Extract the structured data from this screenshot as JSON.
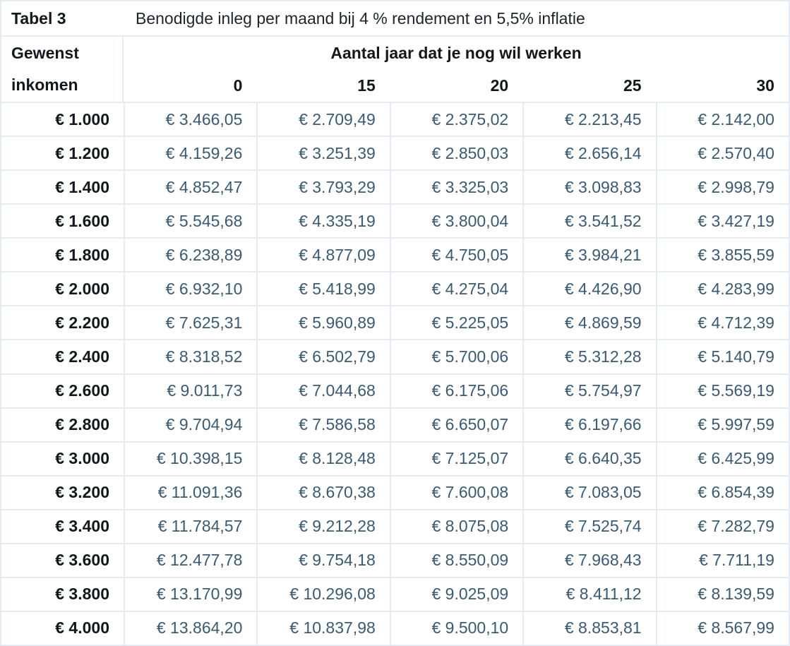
{
  "table": {
    "title_label": "Tabel 3",
    "title_text": "Benodigde inleg per maand bij 4 % rendement en 5,5% inflatie",
    "row_header_line1": "Gewenst",
    "row_header_line2": "inkomen",
    "col_group_header": "Aantal jaar dat je nog wil werken",
    "col_headers": [
      "0",
      "15",
      "20",
      "25",
      "30"
    ],
    "rows": [
      {
        "income": "€ 1.000",
        "values": [
          "€ 3.466,05",
          "€ 2.709,49",
          "€ 2.375,02",
          "€ 2.213,45",
          "€ 2.142,00"
        ]
      },
      {
        "income": "€ 1.200",
        "values": [
          "€ 4.159,26",
          "€ 3.251,39",
          "€ 2.850,03",
          "€ 2.656,14",
          "€ 2.570,40"
        ]
      },
      {
        "income": "€ 1.400",
        "values": [
          "€ 4.852,47",
          "€ 3.793,29",
          "€ 3.325,03",
          "€ 3.098,83",
          "€ 2.998,79"
        ]
      },
      {
        "income": "€ 1.600",
        "values": [
          "€ 5.545,68",
          "€ 4.335,19",
          "€ 3.800,04",
          "€ 3.541,52",
          "€ 3.427,19"
        ]
      },
      {
        "income": "€ 1.800",
        "values": [
          "€ 6.238,89",
          "€ 4.877,09",
          "€ 4.750,05",
          "€ 3.984,21",
          "€ 3.855,59"
        ]
      },
      {
        "income": "€ 2.000",
        "values": [
          "€ 6.932,10",
          "€ 5.418,99",
          "€ 4.275,04",
          "€ 4.426,90",
          "€ 4.283,99"
        ]
      },
      {
        "income": "€ 2.200",
        "values": [
          "€ 7.625,31",
          "€ 5.960,89",
          "€ 5.225,05",
          "€ 4.869,59",
          "€ 4.712,39"
        ]
      },
      {
        "income": "€ 2.400",
        "values": [
          "€ 8.318,52",
          "€ 6.502,79",
          "€ 5.700,06",
          "€ 5.312,28",
          "€ 5.140,79"
        ]
      },
      {
        "income": "€ 2.600",
        "values": [
          "€ 9.011,73",
          "€ 7.044,68",
          "€ 6.175,06",
          "€ 5.754,97",
          "€ 5.569,19"
        ]
      },
      {
        "income": "€ 2.800",
        "values": [
          "€ 9.704,94",
          "€ 7.586,58",
          "€ 6.650,07",
          "€ 6.197,66",
          "€ 5.997,59"
        ]
      },
      {
        "income": "€ 3.000",
        "values": [
          "€ 10.398,15",
          "€ 8.128,48",
          "€ 7.125,07",
          "€ 6.640,35",
          "€ 6.425,99"
        ]
      },
      {
        "income": "€ 3.200",
        "values": [
          "€ 11.091,36",
          "€ 8.670,38",
          "€ 7.600,08",
          "€ 7.083,05",
          "€ 6.854,39"
        ]
      },
      {
        "income": "€ 3.400",
        "values": [
          "€ 11.784,57",
          "€ 9.212,28",
          "€ 8.075,08",
          "€ 7.525,74",
          "€ 7.282,79"
        ]
      },
      {
        "income": "€ 3.600",
        "values": [
          "€ 12.477,78",
          "€ 9.754,18",
          "€ 8.550,09",
          "€ 7.968,43",
          "€ 7.711,19"
        ]
      },
      {
        "income": "€ 3.800",
        "values": [
          "€ 13.170,99",
          "€ 10.296,08",
          "€ 9.025,09",
          "€ 8.411,12",
          "€ 8.139,59"
        ]
      },
      {
        "income": "€ 4.000",
        "values": [
          "€ 13.864,20",
          "€ 10.837,98",
          "€ 9.500,10",
          "€ 8.853,81",
          "€ 8.567,99"
        ]
      }
    ]
  },
  "colors": {
    "value_text": "#3a5a73",
    "label_text": "#14171c",
    "border": "#e5ebf3",
    "background": "#ffffff"
  }
}
